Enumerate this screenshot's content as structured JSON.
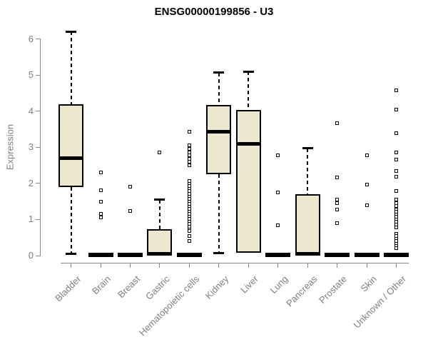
{
  "chart_data": {
    "type": "boxplot",
    "title": "ENSG00000199856 - U3",
    "ylabel": "Expression",
    "xlabel": "",
    "ylim": [
      0,
      6.35
    ],
    "yticks": [
      0,
      1,
      2,
      3,
      4,
      5,
      6
    ],
    "grid": "off",
    "legend": "none",
    "colors": {
      "box_fill": "#ede8cd",
      "box_border": "#000000",
      "median": "#000000",
      "axis": "#888888",
      "tick_text": "#7f7f7f",
      "title_text": "#000000"
    },
    "categories": [
      "Bladder",
      "Brain",
      "Breast",
      "Gastric",
      "Hematopoietic cells",
      "Kidney",
      "Liver",
      "Lung",
      "Pancreas",
      "Prostate",
      "Skin",
      "Unknown / Other"
    ],
    "boxes": [
      {
        "category": "Bladder",
        "low": 0.05,
        "q1": 1.9,
        "median": 2.7,
        "q3": 4.2,
        "high": 6.2,
        "outliers": []
      },
      {
        "category": "Brain",
        "low": 0,
        "q1": 0,
        "median": 0.02,
        "q3": 0.04,
        "high": 0.04,
        "outliers": [
          2.3,
          1.8,
          1.5,
          1.15,
          1.05
        ]
      },
      {
        "category": "Breast",
        "low": 0,
        "q1": 0,
        "median": 0.02,
        "q3": 0.04,
        "high": 0.04,
        "outliers": [
          1.9,
          1.24
        ]
      },
      {
        "category": "Gastric",
        "low": 0.02,
        "q1": 0.02,
        "median": 0.04,
        "q3": 0.73,
        "high": 1.55,
        "outliers": [
          2.85
        ]
      },
      {
        "category": "Hematopoietic cells",
        "low": 0,
        "q1": 0,
        "median": 0.02,
        "q3": 0.04,
        "high": 0.04,
        "outliers": [
          3.43,
          3.05,
          2.95,
          2.86,
          2.77,
          2.68,
          2.59,
          2.5,
          2.06,
          1.99,
          1.92,
          1.85,
          1.78,
          1.71,
          1.64,
          1.57,
          1.5,
          1.43,
          1.36,
          1.29,
          1.22,
          1.15,
          1.08,
          1.01,
          0.94,
          0.87,
          0.8,
          0.73,
          0.69,
          0.55,
          0.4
        ]
      },
      {
        "category": "Kidney",
        "low": 0.06,
        "q1": 2.25,
        "median": 3.43,
        "q3": 4.18,
        "high": 5.07,
        "outliers": []
      },
      {
        "category": "Liver",
        "low": 0.08,
        "q1": 0.08,
        "median": 3.1,
        "q3": 4.03,
        "high": 5.1,
        "outliers": []
      },
      {
        "category": "Lung",
        "low": 0,
        "q1": 0,
        "median": 0.02,
        "q3": 0.04,
        "high": 0.04,
        "outliers": [
          2.78,
          1.74,
          0.85
        ]
      },
      {
        "category": "Pancreas",
        "low": 0.02,
        "q1": 0.02,
        "median": 0.04,
        "q3": 1.7,
        "high": 2.97,
        "outliers": []
      },
      {
        "category": "Prostate",
        "low": 0,
        "q1": 0,
        "median": 0.02,
        "q3": 0.04,
        "high": 0.04,
        "outliers": [
          3.67,
          2.17,
          1.55,
          1.45,
          1.27,
          0.89
        ]
      },
      {
        "category": "Skin",
        "low": 0,
        "q1": 0,
        "median": 0.02,
        "q3": 0.04,
        "high": 0.04,
        "outliers": [
          2.78,
          1.97,
          1.4
        ]
      },
      {
        "category": "Unknown / Other",
        "low": 0,
        "q1": 0,
        "median": 0.02,
        "q3": 0.04,
        "high": 0.04,
        "outliers": [
          4.58,
          4.05,
          3.4,
          2.85,
          2.66,
          2.35,
          2.18,
          1.78,
          1.55,
          1.46,
          1.37,
          1.28,
          1.21,
          1.14,
          1.07,
          1.0,
          0.93,
          0.86,
          0.79,
          0.61,
          0.54,
          0.47,
          0.4,
          0.33,
          0.26,
          0.2
        ]
      }
    ]
  }
}
